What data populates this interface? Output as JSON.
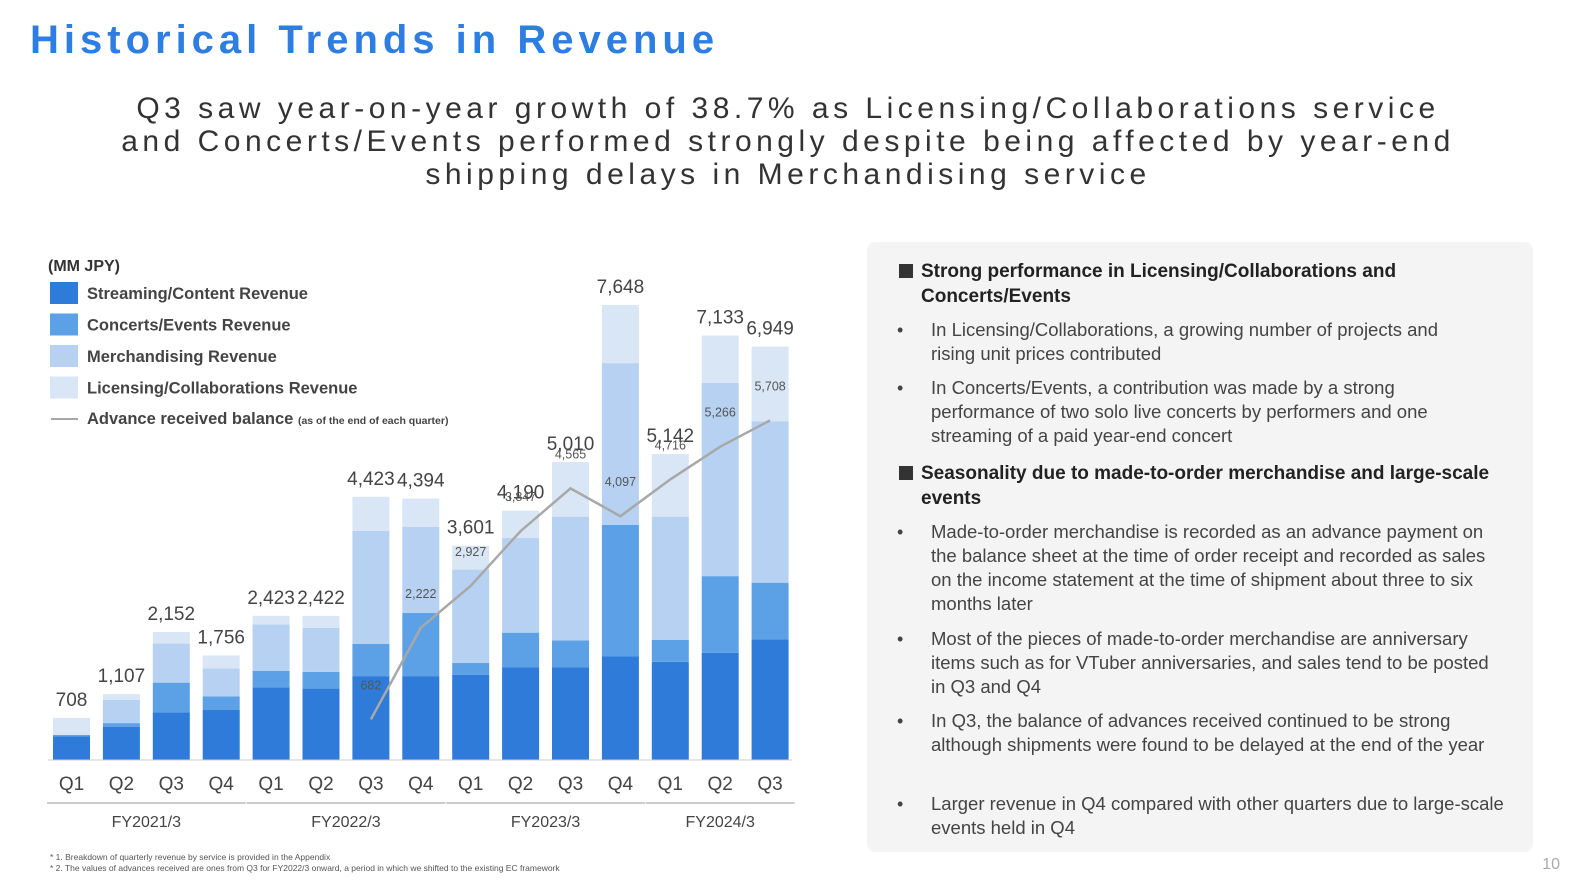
{
  "title": "Historical Trends in Revenue",
  "subtitle": [
    "Q3 saw  year-on-year growth of 38.7% as Licensing/Collaborations service",
    "and Concerts/Events performed strongly despite being affected by year-end",
    "shipping delays in Merchandising service"
  ],
  "colors": {
    "streaming": "#2e7bd9",
    "concerts": "#5ca0e6",
    "merch": "#b6d1f1",
    "licensing": "#d9e6f6",
    "advance": "#a8a8a8"
  },
  "chart_data": {
    "type": "bar",
    "stacked": true,
    "unit_label": "(MM JPY)",
    "categories": [
      "Q1",
      "Q2",
      "Q3",
      "Q4",
      "Q1",
      "Q2",
      "Q3",
      "Q4",
      "Q1",
      "Q2",
      "Q3",
      "Q4",
      "Q1",
      "Q2",
      "Q3"
    ],
    "fiscal_years": [
      {
        "label": "FY2021/3",
        "from": 0,
        "to": 3
      },
      {
        "label": "FY2022/3",
        "from": 4,
        "to": 7
      },
      {
        "label": "FY2023/3",
        "from": 8,
        "to": 11
      },
      {
        "label": "FY2024/3",
        "from": 12,
        "to": 14
      }
    ],
    "totals": [
      708,
      1107,
      2152,
      1756,
      2423,
      2422,
      4423,
      4394,
      3601,
      4190,
      5010,
      7648,
      5142,
      7133,
      6949
    ],
    "total_labels": [
      "708",
      "1,107",
      "2,152",
      "1,756",
      "2,423",
      "2,422",
      "4,423",
      "4,394",
      "3,601",
      "4,190",
      "5,010",
      "7,648",
      "5,142",
      "7,133",
      "6,949"
    ],
    "series": [
      {
        "name": "Streaming/Content Revenue",
        "key": "streaming",
        "values": [
          400,
          560,
          800,
          840,
          1220,
          1200,
          1410,
          1410,
          1430,
          1560,
          1560,
          1740,
          1650,
          1800,
          2030
        ]
      },
      {
        "name": "Concerts/Events  Revenue",
        "key": "concerts",
        "values": [
          20,
          60,
          500,
          230,
          280,
          280,
          540,
          1060,
          200,
          580,
          450,
          2210,
          370,
          1290,
          950
        ]
      },
      {
        "name": "Merchandising Revenue",
        "key": "merch",
        "values": [
          0,
          390,
          660,
          470,
          780,
          740,
          1900,
          1450,
          1570,
          1590,
          2080,
          2720,
          2070,
          3250,
          2710
        ]
      },
      {
        "name": "Licensing/Collaborations Revenue",
        "key": "licensing",
        "values": [
          288,
          97,
          192,
          216,
          143,
          202,
          573,
          474,
          401,
          460,
          920,
          978,
          1052,
          793,
          1259
        ]
      }
    ],
    "advance_series": {
      "name": "Advance received balance",
      "note": "(as of the end of each quarter)",
      "start_index": 6,
      "values": [
        682,
        2222,
        2927,
        3847,
        4565,
        4097,
        4716,
        5266,
        5708
      ],
      "labels": [
        "682",
        "2,222",
        "2,927",
        "3,847",
        "4,565",
        "4,097",
        "4,716",
        "5,266",
        "5,708"
      ]
    },
    "ylim": [
      0,
      8000
    ]
  },
  "panel": {
    "sections": [
      {
        "heading": "Strong performance in Licensing/Collaborations and Concerts/Events",
        "bullets": [
          "In Licensing/Collaborations, a growing number of projects and rising unit prices contributed",
          "In Concerts/Events, a contribution was made by a strong performance of two solo live concerts by performers and one streaming of a paid year-end concert"
        ]
      },
      {
        "heading": "Seasonality due to made-to-order merchandise and large-scale events",
        "bullets": [
          "Made-to-order merchandise is recorded as an advance payment on the balance sheet at the time of order receipt and recorded as sales on the income statement at the time of shipment about three to six months later",
          "Most of the pieces of made-to-order merchandise are anniversary items such as for VTuber anniversaries, and sales tend to be posted in Q3 and Q4",
          "In Q3, the balance of advances received continued to be strong although shipments were found to be delayed at the end of the year",
          "Larger revenue in Q4 compared with other quarters due to large-scale events held in Q4"
        ]
      }
    ]
  },
  "footnotes": [
    "* 1. Breakdown  of quarterly  revenue  by service is provided  in the Appendix",
    "* 2. The values  of advances  received are ones  from Q3 for FY2022/3  onward,  a period  in which we shifted  to the existing EC framework"
  ],
  "page_number": "10"
}
